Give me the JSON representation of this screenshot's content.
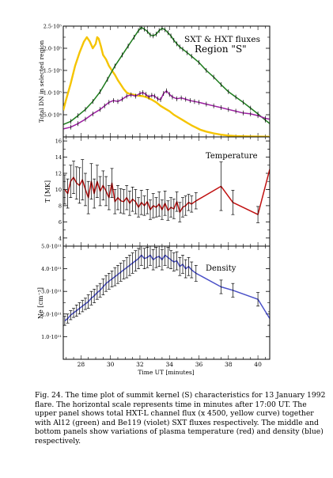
{
  "x_axis_label": "Time UT [minutes]",
  "x_ticks": [
    "28",
    "30",
    "32",
    "34",
    "36",
    "38",
    "40"
  ],
  "colors": {
    "yellow": "#f5c400",
    "green": "#1c7a1c",
    "violet": "#9b1fa0",
    "red": "#c01010",
    "blue": "#4a50c8",
    "axis": "#000000"
  },
  "caption": "Fig. 24. The time plot of summit kernel (S) characteristics for 13 January 1992 flare. The horizontal scale represents time in minutes after 17:00 UT. The upper panel shows total HXT-L channel flux (x 4500, yellow curve) together with Al12 (green) and Be119 (violet) SXT fluxes respectively. The middle and bottom panels show variations of plasma temperature (red) and density (blue) respectively.",
  "chart_data": [
    {
      "type": "line",
      "title": "SXT & HXT fluxes",
      "subtitle": "Region \"S\"",
      "xlabel": "",
      "ylabel": "Total DN in selected region",
      "xlim": [
        26.8,
        40.8
      ],
      "ylim": [
        0,
        250000
      ],
      "y_ticks": [
        "5.0·10⁴",
        "1.0·10⁵",
        "1.5·10⁵",
        "2.0·10⁵",
        "2.5·10⁵"
      ],
      "y_tick_values": [
        50000,
        100000,
        150000,
        200000,
        250000
      ],
      "grid": false,
      "series": [
        {
          "key": "hxt",
          "color": "yellow",
          "x": [
            26.8,
            27.0,
            27.3,
            27.6,
            27.9,
            28.2,
            28.4,
            28.6,
            28.8,
            29.0,
            29.1,
            29.2,
            29.35,
            29.5,
            29.7,
            29.9,
            30.1,
            30.3,
            30.5,
            30.7,
            30.9,
            31.1,
            31.3,
            31.6,
            31.9,
            32.2,
            32.5,
            32.8,
            33.1,
            33.4,
            33.7,
            34.0,
            34.3,
            34.6,
            34.9,
            35.2,
            35.5,
            35.8,
            36.1,
            36.5,
            37.0,
            37.5,
            38.0,
            38.5,
            39.0,
            39.5,
            40.0,
            40.5,
            40.8
          ],
          "y": [
            60000,
            85000,
            120000,
            160000,
            190000,
            215000,
            225000,
            215000,
            200000,
            210000,
            225000,
            222000,
            205000,
            185000,
            175000,
            160000,
            150000,
            140000,
            128000,
            118000,
            108000,
            100000,
            97000,
            95000,
            93000,
            92000,
            89000,
            84000,
            78000,
            70000,
            64000,
            58000,
            50000,
            44000,
            38000,
            32000,
            26000,
            21000,
            16000,
            12000,
            8000,
            5000,
            3000,
            2000,
            1500,
            1000,
            800,
            500,
            400
          ]
        },
        {
          "key": "al12",
          "color": "green",
          "x": [
            26.8,
            27.3,
            27.8,
            28.3,
            28.8,
            29.3,
            29.8,
            30.3,
            30.8,
            31.2,
            31.6,
            31.9,
            32.1,
            32.3,
            32.5,
            32.7,
            32.9,
            33.1,
            33.3,
            33.5,
            33.7,
            33.9,
            34.1,
            34.3,
            34.5,
            34.7,
            34.9,
            35.2,
            35.5,
            36.0,
            36.5,
            37.0,
            37.5,
            38.0,
            38.5,
            39.0,
            39.5,
            40.0,
            40.5,
            40.8
          ],
          "y": [
            28000,
            35000,
            48000,
            62000,
            80000,
            102000,
            130000,
            160000,
            185000,
            205000,
            225000,
            240000,
            247000,
            243000,
            238000,
            230000,
            228000,
            232000,
            240000,
            245000,
            242000,
            235000,
            228000,
            218000,
            210000,
            203000,
            198000,
            190000,
            182000,
            168000,
            150000,
            135000,
            118000,
            102000,
            90000,
            78000,
            65000,
            52000,
            38000,
            30000
          ]
        },
        {
          "key": "be119",
          "color": "violet",
          "x": [
            26.8,
            27.3,
            27.8,
            28.3,
            28.8,
            29.3,
            29.6,
            29.9,
            30.2,
            30.5,
            30.8,
            31.1,
            31.4,
            31.7,
            32.0,
            32.2,
            32.4,
            32.6,
            32.8,
            33.0,
            33.2,
            33.4,
            33.6,
            33.8,
            34.0,
            34.2,
            34.5,
            34.8,
            35.1,
            35.4,
            35.7,
            36.0,
            36.5,
            37.0,
            37.5,
            38.0,
            38.5,
            39.0,
            39.5,
            40.0,
            40.5,
            40.8
          ],
          "y": [
            18000,
            22000,
            30000,
            40000,
            52000,
            62000,
            70000,
            78000,
            82000,
            80000,
            85000,
            92000,
            95000,
            92000,
            98000,
            100000,
            96000,
            90000,
            94000,
            92000,
            86000,
            84000,
            98000,
            104000,
            96000,
            90000,
            86000,
            88000,
            85000,
            82000,
            80000,
            78000,
            74000,
            70000,
            66000,
            62000,
            58000,
            54000,
            52000,
            48000,
            42000,
            40000
          ]
        }
      ]
    },
    {
      "type": "line",
      "title": "Temperature",
      "xlabel": "",
      "ylabel": "T [MK]",
      "xlim": [
        26.8,
        40.8
      ],
      "ylim": [
        3,
        16.5
      ],
      "y_ticks": [
        "4",
        "6",
        "8",
        "10",
        "12",
        "14",
        "16"
      ],
      "y_tick_values": [
        4,
        6,
        8,
        10,
        12,
        14,
        16
      ],
      "grid": false,
      "series": [
        {
          "key": "temperature",
          "color": "red",
          "x": [
            26.9,
            27.1,
            27.3,
            27.5,
            27.7,
            27.9,
            28.1,
            28.3,
            28.5,
            28.7,
            28.9,
            29.1,
            29.3,
            29.5,
            29.7,
            29.9,
            30.1,
            30.3,
            30.5,
            30.7,
            30.9,
            31.1,
            31.3,
            31.5,
            31.7,
            31.9,
            32.1,
            32.3,
            32.5,
            32.7,
            32.9,
            33.1,
            33.3,
            33.5,
            33.7,
            33.9,
            34.1,
            34.3,
            34.5,
            34.7,
            34.9,
            35.1,
            35.3,
            35.5,
            35.8,
            37.5,
            38.3,
            40.0,
            40.8
          ],
          "y": [
            10.0,
            9.5,
            11.0,
            11.5,
            10.8,
            10.5,
            11.2,
            10.0,
            9.0,
            11.0,
            9.5,
            11.0,
            9.8,
            10.5,
            9.8,
            9.0,
            10.8,
            8.5,
            9.0,
            8.6,
            8.5,
            9.0,
            8.3,
            8.8,
            8.5,
            7.8,
            8.4,
            8.0,
            8.5,
            7.5,
            8.0,
            7.8,
            8.2,
            7.5,
            8.3,
            7.4,
            7.8,
            7.6,
            8.5,
            7.2,
            7.8,
            8.0,
            8.4,
            8.2,
            8.6,
            10.4,
            8.4,
            6.9,
            12.5
          ],
          "err": [
            1.8,
            1.8,
            2.0,
            2.0,
            2.0,
            2.2,
            2.5,
            2.0,
            2.0,
            2.2,
            1.8,
            2.0,
            1.8,
            1.8,
            1.8,
            1.5,
            1.8,
            1.5,
            1.5,
            1.5,
            1.5,
            1.5,
            1.5,
            1.5,
            1.5,
            1.2,
            1.5,
            1.2,
            1.5,
            1.2,
            1.5,
            1.2,
            1.5,
            1.2,
            1.5,
            1.2,
            1.2,
            1.2,
            1.2,
            1.2,
            1.2,
            1.2,
            1.0,
            1.0,
            1.0,
            3.0,
            1.5,
            1.0,
            2.5
          ]
        }
      ]
    },
    {
      "type": "line",
      "title": "Density",
      "xlabel": "Time UT [minutes]",
      "ylabel": "Ne [cm⁻³]",
      "xlim": [
        26.8,
        40.8
      ],
      "ylim": [
        0,
        500000000000.0
      ],
      "y_ticks": [
        "1.0·10¹¹",
        "2.0·10¹¹",
        "3.0·10¹¹",
        "4.0·10¹¹",
        "5.0·10¹¹"
      ],
      "y_tick_values": [
        100000000000.0,
        200000000000.0,
        300000000000.0,
        400000000000.0,
        500000000000.0
      ],
      "grid": false,
      "series": [
        {
          "key": "density",
          "color": "blue",
          "x": [
            26.9,
            27.1,
            27.3,
            27.5,
            27.7,
            27.9,
            28.1,
            28.3,
            28.5,
            28.7,
            28.9,
            29.1,
            29.3,
            29.5,
            29.7,
            29.9,
            30.1,
            30.3,
            30.5,
            30.7,
            30.9,
            31.1,
            31.3,
            31.5,
            31.7,
            31.9,
            32.1,
            32.3,
            32.5,
            32.7,
            32.9,
            33.1,
            33.3,
            33.5,
            33.7,
            33.9,
            34.1,
            34.3,
            34.5,
            34.7,
            34.9,
            35.1,
            35.3,
            35.5,
            35.8,
            37.5,
            38.3,
            40.0,
            40.8
          ],
          "y": [
            170000000000.0,
            180000000000.0,
            195000000000.0,
            205000000000.0,
            215000000000.0,
            225000000000.0,
            235000000000.0,
            245000000000.0,
            255000000000.0,
            270000000000.0,
            280000000000.0,
            295000000000.0,
            305000000000.0,
            320000000000.0,
            335000000000.0,
            345000000000.0,
            355000000000.0,
            365000000000.0,
            375000000000.0,
            385000000000.0,
            395000000000.0,
            405000000000.0,
            415000000000.0,
            425000000000.0,
            435000000000.0,
            445000000000.0,
            460000000000.0,
            445000000000.0,
            450000000000.0,
            460000000000.0,
            440000000000.0,
            450000000000.0,
            455000000000.0,
            440000000000.0,
            460000000000.0,
            450000000000.0,
            440000000000.0,
            430000000000.0,
            435000000000.0,
            410000000000.0,
            420000000000.0,
            400000000000.0,
            410000000000.0,
            395000000000.0,
            380000000000.0,
            320000000000.0,
            305000000000.0,
            265000000000.0,
            180000000000.0
          ],
          "err": [
            20000000000.0,
            20000000000.0,
            20000000000.0,
            20000000000.0,
            25000000000.0,
            25000000000.0,
            25000000000.0,
            25000000000.0,
            30000000000.0,
            30000000000.0,
            30000000000.0,
            30000000000.0,
            30000000000.0,
            35000000000.0,
            35000000000.0,
            35000000000.0,
            35000000000.0,
            40000000000.0,
            40000000000.0,
            40000000000.0,
            40000000000.0,
            45000000000.0,
            45000000000.0,
            45000000000.0,
            45000000000.0,
            45000000000.0,
            45000000000.0,
            45000000000.0,
            45000000000.0,
            45000000000.0,
            45000000000.0,
            45000000000.0,
            45000000000.0,
            45000000000.0,
            45000000000.0,
            45000000000.0,
            40000000000.0,
            40000000000.0,
            40000000000.0,
            40000000000.0,
            40000000000.0,
            40000000000.0,
            40000000000.0,
            35000000000.0,
            35000000000.0,
            30000000000.0,
            30000000000.0,
            30000000000.0,
            30000000000.0
          ]
        }
      ]
    }
  ]
}
